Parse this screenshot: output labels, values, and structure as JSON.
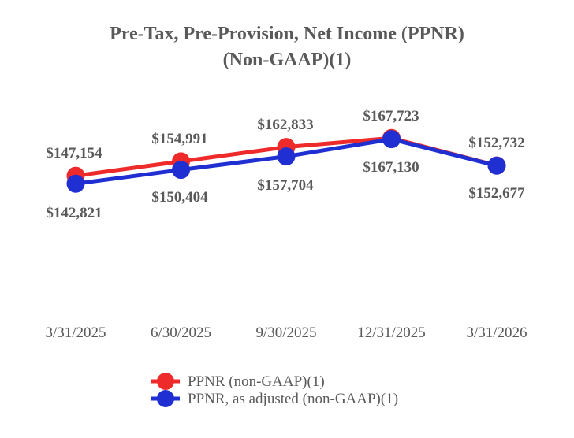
{
  "chart_data": {
    "type": "line",
    "title": "Pre-Tax, Pre-Provision, Net Income (PPNR)",
    "subtitle": "(Non-GAAP)(1)",
    "xlabel": "",
    "ylabel": "",
    "categories": [
      "3/31/2025",
      "6/30/2025",
      "9/30/2025",
      "12/31/2025",
      "3/31/2026"
    ],
    "ylim": [
      60000,
      180000
    ],
    "grid": false,
    "legend_position": "bottom",
    "series": [
      {
        "name": "PPNR (non-GAAP)(1)",
        "color": "#ee2a2a",
        "values": [
          147154,
          154991,
          162833,
          167723,
          152732
        ],
        "labels": [
          "$147,154",
          "$154,991",
          "$162,833",
          "$167,723",
          "$152,732"
        ]
      },
      {
        "name": "PPNR, as adjusted (non-GAAP)(1)",
        "color": "#1f2fd1",
        "values": [
          142821,
          150404,
          157704,
          167130,
          152677
        ],
        "labels": [
          "$142,821",
          "$150,404",
          "$157,704",
          "$167,130",
          "$152,677"
        ]
      }
    ]
  }
}
